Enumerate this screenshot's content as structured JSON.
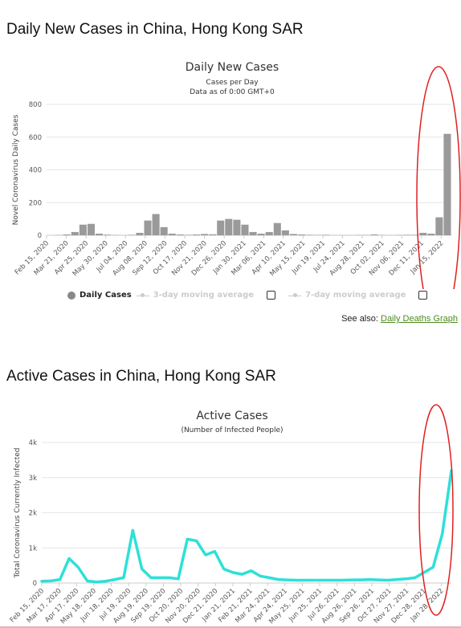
{
  "sections": {
    "daily_heading": "Daily New Cases in China, Hong Kong SAR",
    "active_heading": "Active Cases in China, Hong Kong SAR"
  },
  "legend": {
    "daily": "Daily Cases",
    "ma3": "3-day moving average",
    "ma7": "7-day moving average"
  },
  "see_also": {
    "label": "See also:",
    "link": "Daily Deaths Graph"
  },
  "colors": {
    "bars": "#9a9a9a",
    "active_line": "#2ee0d8",
    "highlight": "#e02020"
  },
  "chart_data": [
    {
      "type": "bar",
      "title": "Daily New Cases",
      "subtitle": "Cases per Day",
      "subtitle2": "Data as of 0:00 GMT+0",
      "ylabel": "Novel Coronavirus Daily Cases",
      "xlabel": "",
      "ylim": [
        0,
        800
      ],
      "yticks": [
        "0",
        "200",
        "400",
        "600",
        "800"
      ],
      "xticks": [
        "Feb 15, 2020",
        "Mar 21, 2020",
        "Apr 25, 2020",
        "May 30, 2020",
        "Jul 04, 2020",
        "Aug 08, 2020",
        "Sep 12, 2020",
        "Oct 17, 2020",
        "Nov 21, 2020",
        "Dec 26, 2020",
        "Jan 30, 2021",
        "Mar 06, 2021",
        "Apr 10, 2021",
        "May 15, 2021",
        "Jun 19, 2021",
        "Jul 24, 2021",
        "Aug 28, 2021",
        "Oct 02, 2021",
        "Nov 06, 2021",
        "Dec 11, 2021",
        "Jan 15, 2022"
      ],
      "period_days": 35,
      "series": [
        {
          "name": "Daily Cases",
          "values": [
            0,
            2,
            5,
            20,
            65,
            70,
            10,
            4,
            2,
            1,
            3,
            15,
            90,
            130,
            50,
            10,
            5,
            3,
            5,
            8,
            6,
            90,
            100,
            95,
            65,
            20,
            10,
            20,
            75,
            30,
            8,
            5,
            3,
            2,
            3,
            1,
            1,
            1,
            2,
            2,
            5,
            2,
            1,
            2,
            3,
            3,
            15,
            10,
            110,
            620
          ]
        }
      ],
      "grid": true
    },
    {
      "type": "line",
      "title": "Active Cases",
      "subtitle": "(Number of Infected People)",
      "ylabel": "Total Coronavirus Currently Infected",
      "xlabel": "",
      "ylim": [
        0,
        4000
      ],
      "yticks": [
        "0",
        "1k",
        "2k",
        "3k",
        "4k"
      ],
      "xticks": [
        "Feb 15, 2020",
        "Mar 17, 2020",
        "Apr 17, 2020",
        "May 18, 2020",
        "Jun 18, 2020",
        "Jul 19, 2020",
        "Aug 19, 2020",
        "Sep 19, 2020",
        "Oct 20, 2020",
        "Nov 20, 2020",
        "Dec 21, 2020",
        "Jan 21, 2021",
        "Feb 21, 2021",
        "Mar 24, 2021",
        "Apr 24, 2021",
        "May 25, 2021",
        "Jun 25, 2021",
        "Jul 26, 2021",
        "Aug 26, 2021",
        "Sep 26, 2021",
        "Oct 27, 2021",
        "Nov 27, 2021",
        "Dec 28, 2021",
        "Jan 28, 2022"
      ],
      "period_days": 31,
      "series": [
        {
          "name": "Active Cases",
          "values": [
            50,
            60,
            100,
            700,
            450,
            60,
            30,
            50,
            100,
            150,
            1500,
            400,
            150,
            150,
            150,
            120,
            1250,
            1200,
            800,
            900,
            400,
            300,
            250,
            350,
            200,
            150,
            100,
            90,
            80,
            80,
            80,
            80,
            80,
            80,
            90,
            90,
            100,
            90,
            80,
            100,
            120,
            150,
            300,
            450,
            1400,
            3200
          ]
        }
      ],
      "grid": true
    }
  ]
}
